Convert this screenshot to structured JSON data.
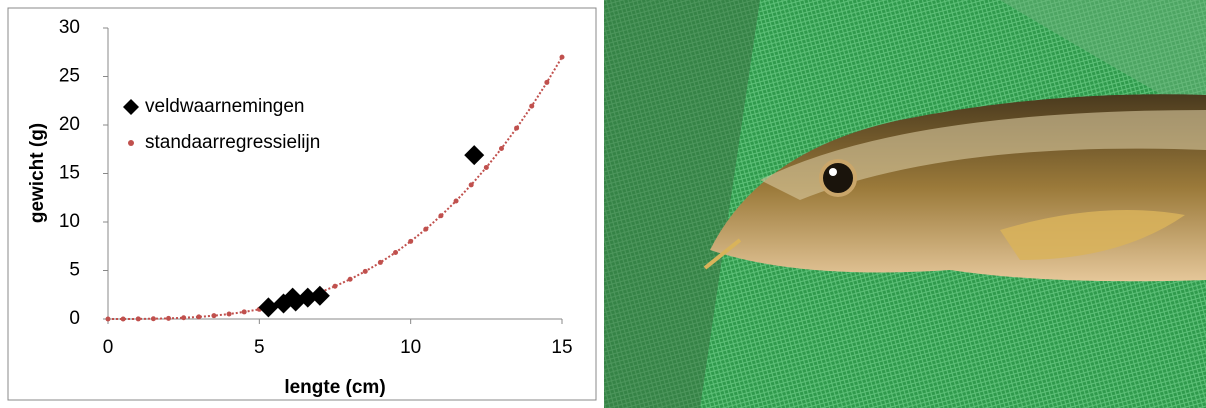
{
  "chart_data": {
    "type": "scatter",
    "xlabel": "lengte (cm)",
    "ylabel": "gewicht (g)",
    "xlim": [
      0,
      15
    ],
    "xticks": [
      0,
      5,
      10,
      15
    ],
    "ylim": [
      0,
      30
    ],
    "yticks": [
      0,
      5,
      10,
      15,
      20,
      25,
      30
    ],
    "grid": false,
    "legend": "left",
    "series": [
      {
        "name": "veldwaarnemingen",
        "color": "#000000",
        "marker": "diamond",
        "x": [
          5.3,
          5.8,
          6.1,
          6.2,
          6.6,
          7.0,
          12.1
        ],
        "values": [
          1.2,
          1.6,
          2.2,
          1.8,
          2.2,
          2.4,
          16.9
        ]
      },
      {
        "name": "standaarregressielijn",
        "color": "#c0504d",
        "marker": "dot",
        "x": [
          0,
          0.5,
          1,
          1.5,
          2,
          2.5,
          3,
          3.5,
          4,
          4.5,
          5,
          5.5,
          6,
          6.5,
          7,
          7.5,
          8,
          8.5,
          9,
          9.5,
          10,
          10.5,
          11,
          11.5,
          12,
          12.5,
          13,
          13.5,
          14,
          14.5,
          15
        ],
        "values": [
          0,
          0.001,
          0.008,
          0.027,
          0.064,
          0.125,
          0.216,
          0.343,
          0.512,
          0.729,
          1.0,
          1.331,
          1.728,
          2.197,
          2.744,
          3.375,
          4.096,
          4.913,
          5.832,
          6.859,
          8.0,
          9.261,
          10.648,
          12.167,
          13.824,
          15.625,
          17.576,
          19.683,
          21.952,
          24.389,
          27.0
        ]
      }
    ]
  }
}
